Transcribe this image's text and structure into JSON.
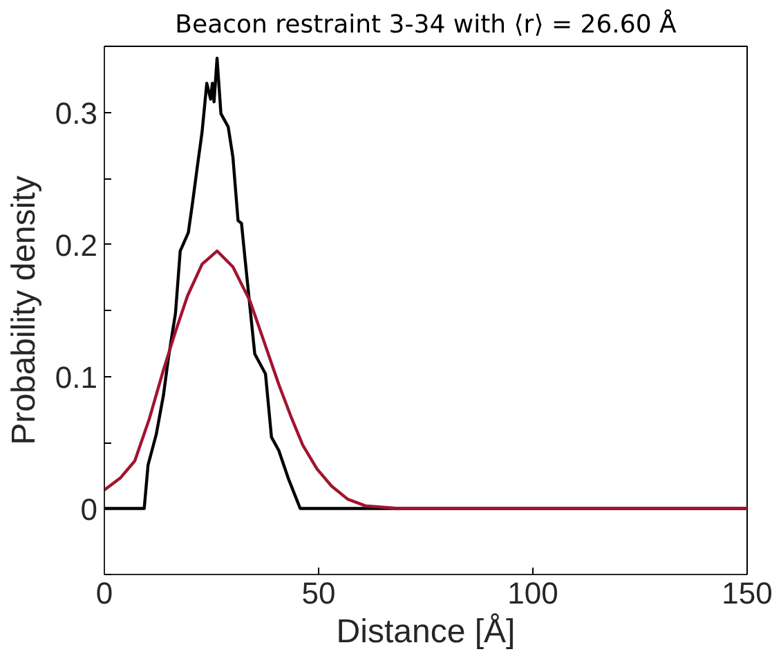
{
  "chart_data": {
    "type": "line",
    "title": "Beacon restraint 3-34 with ⟨r⟩ = 26.60 Å",
    "xlabel": "Distance [Å]",
    "ylabel": "Probability density",
    "xlim": [
      0,
      150
    ],
    "xticks": [
      0,
      50,
      100,
      150
    ],
    "ylim": [
      -0.05,
      0.35
    ],
    "yticks": [
      {
        "value": -0.05,
        "label": null
      },
      0,
      {
        "value": 0.05,
        "label": null
      },
      0.1,
      {
        "value": 0.15,
        "label": null
      },
      0.2,
      {
        "value": 0.25,
        "label": null
      },
      0.3
    ],
    "grid": false,
    "marker": "none",
    "line_style": "solid",
    "series": [
      {
        "color": "#000000",
        "x": [
          0,
          9.3,
          10.2,
          12.1,
          13.8,
          14.9,
          16.6,
          17.7,
          19.6,
          20.6,
          21.7,
          22.8,
          23.9,
          24.8,
          25.2,
          25.6,
          26.3,
          27.2,
          28.9,
          30.0,
          31.2,
          32.0,
          32.8,
          33.9,
          35.1,
          37.6,
          39.0,
          40.7,
          42.9,
          45.7,
          150
        ],
        "values": [
          0,
          0,
          0.033,
          0.056,
          0.086,
          0.113,
          0.148,
          0.195,
          0.209,
          0.232,
          0.259,
          0.285,
          0.322,
          0.31,
          0.322,
          0.308,
          0.341,
          0.299,
          0.289,
          0.266,
          0.218,
          0.216,
          0.19,
          0.155,
          0.117,
          0.102,
          0.054,
          0.044,
          0.023,
          0,
          0
        ]
      },
      {
        "color": "#a2142f",
        "x": [
          0,
          3.7,
          7.1,
          10.5,
          13.8,
          16.6,
          19.4,
          22.8,
          26.3,
          30.0,
          34.0,
          37.3,
          40.7,
          43.5,
          46.3,
          49.6,
          53.0,
          56.8,
          60.9,
          68.7,
          150
        ],
        "values": [
          0.014,
          0.023,
          0.036,
          0.068,
          0.105,
          0.134,
          0.161,
          0.185,
          0.195,
          0.183,
          0.157,
          0.126,
          0.094,
          0.07,
          0.048,
          0.03,
          0.017,
          0.007,
          0.002,
          0,
          0
        ]
      }
    ]
  }
}
